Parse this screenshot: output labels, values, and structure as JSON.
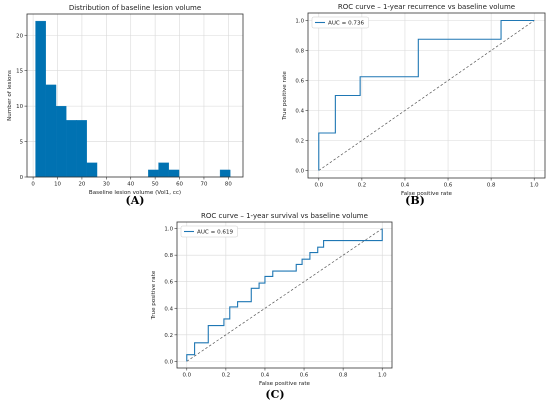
{
  "style": {
    "series_color": "#1f77b4",
    "bar_color": "#0072b2",
    "chance_line_color": "#555555",
    "grid": true
  },
  "panels": {
    "a": {
      "caption": "(A)"
    },
    "b": {
      "caption": "(B)"
    },
    "c": {
      "caption": "(C)"
    }
  },
  "chart_data": [
    {
      "type": "bar",
      "title": "Distribution of baseline lesion volume",
      "xlabel": "Baseline lesion volume (Vol1, cc)",
      "ylabel": "Number of lesions",
      "xlim": [
        -2.5,
        86
      ],
      "ylim": [
        0,
        23
      ],
      "x_ticks": [
        0,
        10,
        20,
        30,
        40,
        50,
        60,
        70,
        80
      ],
      "y_ticks": [
        0,
        5,
        10,
        15,
        20
      ],
      "bins": [
        {
          "start": 1,
          "end": 5.2,
          "count": 22
        },
        {
          "start": 5.2,
          "end": 9.4,
          "count": 13
        },
        {
          "start": 9.4,
          "end": 13.6,
          "count": 10
        },
        {
          "start": 13.6,
          "end": 17.8,
          "count": 8
        },
        {
          "start": 17.8,
          "end": 22.0,
          "count": 8
        },
        {
          "start": 22.0,
          "end": 26.2,
          "count": 2
        },
        {
          "start": 26.2,
          "end": 30.4,
          "count": 0
        },
        {
          "start": 30.4,
          "end": 34.6,
          "count": 0
        },
        {
          "start": 34.6,
          "end": 38.8,
          "count": 0
        },
        {
          "start": 38.8,
          "end": 43.0,
          "count": 0
        },
        {
          "start": 43.0,
          "end": 47.2,
          "count": 0
        },
        {
          "start": 47.2,
          "end": 51.4,
          "count": 1
        },
        {
          "start": 51.4,
          "end": 55.6,
          "count": 2
        },
        {
          "start": 55.6,
          "end": 59.8,
          "count": 1
        },
        {
          "start": 59.8,
          "end": 64.0,
          "count": 0
        },
        {
          "start": 64.0,
          "end": 68.2,
          "count": 0
        },
        {
          "start": 68.2,
          "end": 72.4,
          "count": 0
        },
        {
          "start": 72.4,
          "end": 76.6,
          "count": 0
        },
        {
          "start": 76.6,
          "end": 80.8,
          "count": 1
        }
      ]
    },
    {
      "type": "line",
      "title": "ROC curve – 1-year recurrence vs baseline volume",
      "xlabel": "False positive rate",
      "ylabel": "True positive rate",
      "xlim": [
        -0.05,
        1.05
      ],
      "ylim": [
        -0.05,
        1.05
      ],
      "x_ticks": [
        0.0,
        0.2,
        0.4,
        0.6,
        0.8,
        1.0
      ],
      "y_ticks": [
        0.0,
        0.2,
        0.4,
        0.6,
        0.8,
        1.0
      ],
      "legend": "top-left",
      "series": [
        {
          "name": "AUC = 0.736",
          "x": [
            0,
            0,
            0.077,
            0.077,
            0.077,
            0.077,
            0.192,
            0.192,
            0.462,
            0.462,
            0.846,
            0.846,
            1.0
          ],
          "y": [
            0,
            0.25,
            0.25,
            0.375,
            0.5,
            0.5,
            0.5,
            0.625,
            0.625,
            0.875,
            0.875,
            1.0,
            1.0
          ]
        }
      ],
      "chance_line": {
        "x": [
          0,
          1
        ],
        "y": [
          0,
          1
        ]
      }
    },
    {
      "type": "line",
      "title": "ROC curve – 1-year survival vs baseline volume",
      "xlabel": "False positive rate",
      "ylabel": "True positive rate",
      "xlim": [
        -0.05,
        1.05
      ],
      "ylim": [
        -0.05,
        1.05
      ],
      "x_ticks": [
        0.0,
        0.2,
        0.4,
        0.6,
        0.8,
        1.0
      ],
      "y_ticks": [
        0.0,
        0.2,
        0.4,
        0.6,
        0.8,
        1.0
      ],
      "legend": "top-left",
      "series": [
        {
          "name": "AUC = 0.619",
          "x": [
            0,
            0,
            0.04,
            0.04,
            0.11,
            0.11,
            0.19,
            0.19,
            0.22,
            0.22,
            0.26,
            0.26,
            0.33,
            0.33,
            0.37,
            0.37,
            0.4,
            0.4,
            0.44,
            0.44,
            0.48,
            0.48,
            0.56,
            0.56,
            0.59,
            0.59,
            0.63,
            0.63,
            0.67,
            0.67,
            0.7,
            0.7,
            0.81,
            0.81,
            0.89,
            0.89,
            1.0,
            1.0
          ],
          "y": [
            0,
            0.05,
            0.05,
            0.14,
            0.14,
            0.27,
            0.27,
            0.32,
            0.32,
            0.41,
            0.41,
            0.45,
            0.45,
            0.55,
            0.55,
            0.59,
            0.59,
            0.64,
            0.64,
            0.68,
            0.68,
            0.68,
            0.68,
            0.73,
            0.73,
            0.77,
            0.77,
            0.82,
            0.82,
            0.86,
            0.86,
            0.91,
            0.91,
            0.91,
            0.91,
            0.91,
            0.91,
            1.0
          ]
        }
      ],
      "chance_line": {
        "x": [
          0,
          1
        ],
        "y": [
          0,
          1
        ]
      }
    }
  ]
}
